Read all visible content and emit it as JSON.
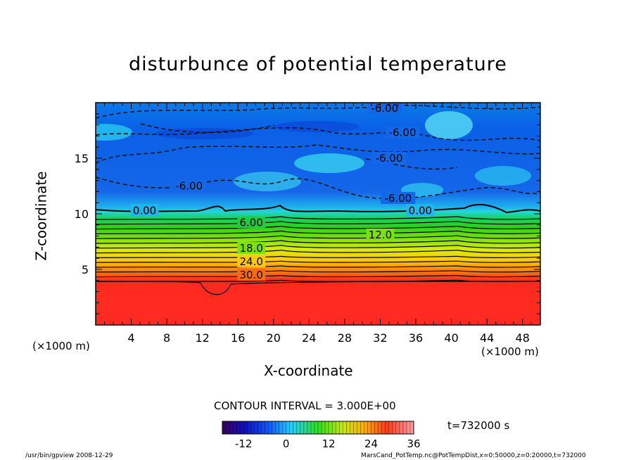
{
  "title": "disturbunce of potential temperature",
  "chart_data": {
    "type": "heatmap",
    "title": "disturbunce of potential temperature",
    "xlabel": "X-coordinate",
    "ylabel": "Z-coordinate",
    "x_unit": "(×1000 m)",
    "y_unit": "(×1000 m)",
    "xlim": [
      0,
      50
    ],
    "ylim": [
      0,
      20
    ],
    "x_ticks": [
      4,
      8,
      12,
      16,
      20,
      24,
      28,
      32,
      36,
      40,
      44,
      48
    ],
    "y_ticks": [
      5,
      10,
      15
    ],
    "contour_interval_text": "CONTOUR INTERVAL = 3.000E+00",
    "contour_labels": [
      {
        "text": "-6.00",
        "x": 32.5,
        "z": 19.5
      },
      {
        "text": "-6.00",
        "x": 34.5,
        "z": 17.3
      },
      {
        "text": "-6.00",
        "x": 33.0,
        "z": 15.0
      },
      {
        "text": "-6.00",
        "x": 10.5,
        "z": 12.5
      },
      {
        "text": "-6.00",
        "x": 34.0,
        "z": 11.4
      },
      {
        "text": "0.00",
        "x": 5.5,
        "z": 10.3
      },
      {
        "text": "0.00",
        "x": 36.5,
        "z": 10.3
      },
      {
        "text": "6.00",
        "x": 17.5,
        "z": 9.2
      },
      {
        "text": "12.0",
        "x": 32.0,
        "z": 8.1
      },
      {
        "text": "18.0",
        "x": 17.5,
        "z": 6.9
      },
      {
        "text": "24.0",
        "x": 17.5,
        "z": 5.7
      },
      {
        "text": "30.0",
        "x": 17.5,
        "z": 4.5
      }
    ],
    "colorbar": {
      "range": [
        -18,
        36
      ],
      "ticks": [
        -12,
        0,
        12,
        24,
        36
      ]
    },
    "time_label": "t=732000 s"
  },
  "footer": {
    "left": "/usr/bin/gpview  2008-12-29",
    "right": "MarsCand_PotTemp.nc@PotTempDist,x=0:50000,z=0:20000,t=732000"
  },
  "colors": {
    "deep_negative": "#0a55e6",
    "neutral": "#22d0e6",
    "positive_mid": "#2ccf18",
    "positive_high": "#ff2a1e"
  }
}
